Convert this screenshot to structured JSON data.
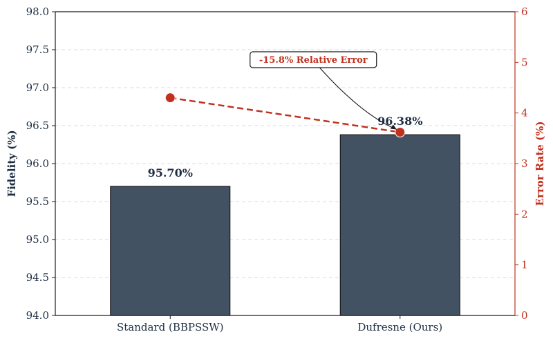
{
  "chart_data": {
    "type": "bar",
    "categories": [
      "Standard (BBPSSW)",
      "Dufresne (Ours)"
    ],
    "series": [
      {
        "name": "Fidelity (%)",
        "type": "bar",
        "axis": "left",
        "values": [
          95.7,
          96.38
        ]
      },
      {
        "name": "Error Rate (%)",
        "type": "line",
        "axis": "right",
        "values": [
          4.3,
          3.62
        ]
      }
    ],
    "bar_labels": [
      "95.70%",
      "96.38%"
    ],
    "ylabel": "Fidelity (%)",
    "y2label": "Error Rate (%)",
    "ylim": [
      94.0,
      98.0
    ],
    "y2lim": [
      0,
      6
    ],
    "yticks": [
      "94.0",
      "94.5",
      "95.0",
      "95.5",
      "96.0",
      "96.5",
      "97.0",
      "97.5",
      "98.0"
    ],
    "y2ticks": [
      "0",
      "1",
      "2",
      "3",
      "4",
      "5",
      "6"
    ],
    "annotation": "-15.8% Relative Error",
    "grid": true,
    "colors": {
      "bar": "#435263",
      "line": "#c0311f",
      "left_axis": "#1f2f43",
      "right_axis": "#c0311f"
    }
  }
}
